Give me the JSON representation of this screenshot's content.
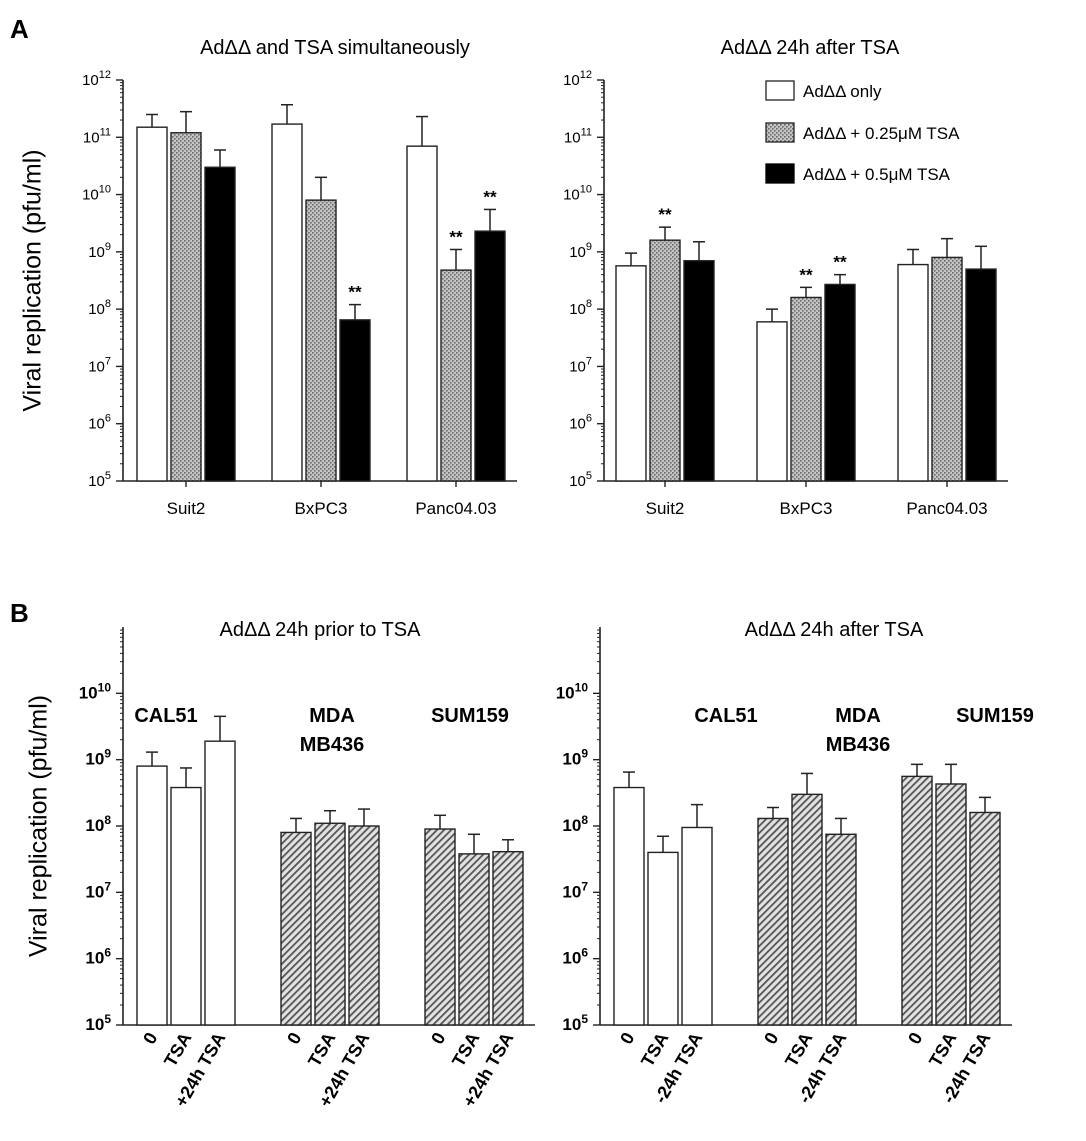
{
  "panel_labels": {
    "a": "A",
    "b": "B"
  },
  "legend": {
    "items": [
      {
        "label": "AdΔΔ only",
        "fill": "white"
      },
      {
        "label": "AdΔΔ + 0.25μM TSA",
        "fill": "dots"
      },
      {
        "label": "AdΔΔ + 0.5μM TSA",
        "fill": "black"
      }
    ]
  },
  "colors": {
    "axis": "#222222",
    "bar_black": "#000000",
    "dot_fill": "#bdbdbd",
    "hatch_bg": "#e0e0e0",
    "hatch_line": "#555555"
  },
  "chart_data": [
    {
      "id": "A1",
      "type": "bar",
      "scale": "log10",
      "title": "AdΔΔ and TSA simultaneously",
      "ylabel": "Viral replication (pfu/ml)",
      "ylim": [
        100000,
        1000000000000
      ],
      "yticks": [
        {
          "base": "10",
          "exp": "5"
        },
        {
          "base": "10",
          "exp": "6"
        },
        {
          "base": "10",
          "exp": "7"
        },
        {
          "base": "10",
          "exp": "8"
        },
        {
          "base": "10",
          "exp": "9"
        },
        {
          "base": "10",
          "exp": "10"
        },
        {
          "base": "10",
          "exp": "11"
        },
        {
          "base": "10",
          "exp": "12"
        }
      ],
      "groups": [
        {
          "label": "Suit2",
          "bars": [
            {
              "fill": "white",
              "value": 150000000000,
              "err": 250000000000,
              "sig": ""
            },
            {
              "fill": "dots",
              "value": 120000000000,
              "err": 280000000000,
              "sig": ""
            },
            {
              "fill": "black",
              "value": 30000000000,
              "err": 60000000000,
              "sig": ""
            }
          ]
        },
        {
          "label": "BxPC3",
          "bars": [
            {
              "fill": "white",
              "value": 170000000000,
              "err": 370000000000,
              "sig": ""
            },
            {
              "fill": "dots",
              "value": 8000000000,
              "err": 20000000000,
              "sig": ""
            },
            {
              "fill": "black",
              "value": 65000000,
              "err": 120000000,
              "sig": "**"
            }
          ]
        },
        {
          "label": "Panc04.03",
          "bars": [
            {
              "fill": "white",
              "value": 70000000000,
              "err": 230000000000,
              "sig": ""
            },
            {
              "fill": "dots",
              "value": 480000000,
              "err": 1100000000,
              "sig": "**"
            },
            {
              "fill": "black",
              "value": 2300000000,
              "err": 5500000000,
              "sig": "**"
            }
          ]
        }
      ]
    },
    {
      "id": "A2",
      "type": "bar",
      "scale": "log10",
      "title": "AdΔΔ 24h after TSA",
      "ylabel": "",
      "ylim": [
        100000,
        1000000000000
      ],
      "yticks": [
        {
          "base": "10",
          "exp": "5"
        },
        {
          "base": "10",
          "exp": "6"
        },
        {
          "base": "10",
          "exp": "7"
        },
        {
          "base": "10",
          "exp": "8"
        },
        {
          "base": "10",
          "exp": "9"
        },
        {
          "base": "10",
          "exp": "10"
        },
        {
          "base": "10",
          "exp": "11"
        },
        {
          "base": "10",
          "exp": "12"
        }
      ],
      "groups": [
        {
          "label": "Suit2",
          "bars": [
            {
              "fill": "white",
              "value": 570000000,
              "err": 950000000,
              "sig": ""
            },
            {
              "fill": "dots",
              "value": 1600000000,
              "err": 2700000000,
              "sig": "**"
            },
            {
              "fill": "black",
              "value": 700000000,
              "err": 1500000000,
              "sig": ""
            }
          ]
        },
        {
          "label": "BxPC3",
          "bars": [
            {
              "fill": "white",
              "value": 60000000,
              "err": 100000000,
              "sig": ""
            },
            {
              "fill": "dots",
              "value": 160000000,
              "err": 240000000,
              "sig": "**"
            },
            {
              "fill": "black",
              "value": 270000000,
              "err": 400000000,
              "sig": "**"
            }
          ]
        },
        {
          "label": "Panc04.03",
          "bars": [
            {
              "fill": "white",
              "value": 600000000,
              "err": 1100000000,
              "sig": ""
            },
            {
              "fill": "dots",
              "value": 800000000,
              "err": 1700000000,
              "sig": ""
            },
            {
              "fill": "black",
              "value": 500000000,
              "err": 1250000000,
              "sig": ""
            }
          ]
        }
      ]
    },
    {
      "id": "B1",
      "type": "bar",
      "scale": "log10",
      "title": "AdΔΔ 24h prior to TSA",
      "ylabel": "Viral replication (pfu/ml)",
      "ylim": [
        100000,
        100000000000
      ],
      "yticks": [
        {
          "base": "10",
          "exp": "5"
        },
        {
          "base": "10",
          "exp": "6"
        },
        {
          "base": "10",
          "exp": "7"
        },
        {
          "base": "10",
          "exp": "8"
        },
        {
          "base": "10",
          "exp": "9"
        },
        {
          "base": "10",
          "exp": "10"
        }
      ],
      "groups": [
        {
          "label_lines": [
            "CAL51"
          ],
          "bars": [
            {
              "fill": "white",
              "label": "0",
              "value": 800000000,
              "err": 1300000000
            },
            {
              "fill": "white",
              "label": "TSA",
              "value": 380000000,
              "err": 750000000
            },
            {
              "fill": "white",
              "label": "+24h TSA",
              "value": 1900000000,
              "err": 4500000000
            }
          ]
        },
        {
          "label_lines": [
            "MDA",
            "MB436"
          ],
          "bars": [
            {
              "fill": "hatch",
              "label": "0",
              "value": 80000000,
              "err": 130000000
            },
            {
              "fill": "hatch",
              "label": "TSA",
              "value": 110000000,
              "err": 170000000
            },
            {
              "fill": "hatch",
              "label": "+24h TSA",
              "value": 100000000,
              "err": 180000000
            }
          ]
        },
        {
          "label_lines": [
            "SUM159"
          ],
          "bars": [
            {
              "fill": "hatch",
              "label": "0",
              "value": 90000000,
              "err": 145000000
            },
            {
              "fill": "hatch",
              "label": "TSA",
              "value": 38000000,
              "err": 75000000
            },
            {
              "fill": "hatch",
              "label": "+24h TSA",
              "value": 41000000,
              "err": 62000000
            }
          ]
        }
      ]
    },
    {
      "id": "B2",
      "type": "bar",
      "scale": "log10",
      "title": "AdΔΔ 24h after TSA",
      "ylabel": "",
      "ylim": [
        100000,
        100000000000
      ],
      "yticks": [
        {
          "base": "10",
          "exp": "5"
        },
        {
          "base": "10",
          "exp": "6"
        },
        {
          "base": "10",
          "exp": "7"
        },
        {
          "base": "10",
          "exp": "8"
        },
        {
          "base": "10",
          "exp": "9"
        },
        {
          "base": "10",
          "exp": "10"
        }
      ],
      "groups": [
        {
          "label_lines": [
            "CAL51"
          ],
          "bars": [
            {
              "fill": "white",
              "label": "0",
              "value": 380000000,
              "err": 650000000
            },
            {
              "fill": "white",
              "label": "TSA",
              "value": 40000000,
              "err": 70000000
            },
            {
              "fill": "white",
              "label": "-24h TSA",
              "value": 95000000,
              "err": 210000000
            }
          ]
        },
        {
          "label_lines": [
            "MDA",
            "MB436"
          ],
          "bars": [
            {
              "fill": "hatch",
              "label": "0",
              "value": 130000000,
              "err": 190000000
            },
            {
              "fill": "hatch",
              "label": "TSA",
              "value": 300000000,
              "err": 620000000
            },
            {
              "fill": "hatch",
              "label": "-24h TSA",
              "value": 75000000,
              "err": 130000000
            }
          ]
        },
        {
          "label_lines": [
            "SUM159"
          ],
          "bars": [
            {
              "fill": "hatch",
              "label": "0",
              "value": 560000000,
              "err": 850000000
            },
            {
              "fill": "hatch",
              "label": "TSA",
              "value": 430000000,
              "err": 850000000
            },
            {
              "fill": "hatch",
              "label": "-24h TSA",
              "value": 160000000,
              "err": 270000000
            }
          ]
        }
      ]
    }
  ]
}
